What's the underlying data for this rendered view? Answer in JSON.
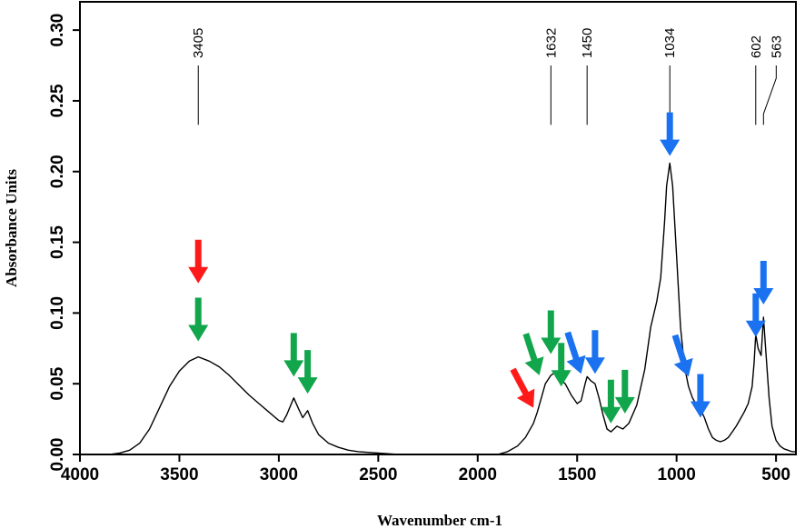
{
  "chart_data": {
    "type": "line",
    "title": "",
    "xlabel": "Wavenumber cm-1",
    "ylabel": "Absorbance Units",
    "xlim": [
      4000,
      400
    ],
    "ylim": [
      0,
      0.32
    ],
    "x_ticks": [
      4000,
      3500,
      3000,
      2500,
      2000,
      1500,
      1000,
      500
    ],
    "x_tick_labels": [
      "4000",
      "3500",
      "3000",
      "2500",
      "2000",
      "1500",
      "1000",
      "500"
    ],
    "y_ticks": [
      0,
      0.05,
      0.1,
      0.15,
      0.2,
      0.25,
      0.3
    ],
    "y_tick_labels": [
      "0.00",
      "0.05",
      "0.10",
      "0.15",
      "0.20",
      "0.25",
      "0.30"
    ],
    "grid": false,
    "legend": "none",
    "line_color": "#000000",
    "series": [
      {
        "x": [
          3850,
          3800,
          3750,
          3700,
          3650,
          3600,
          3550,
          3500,
          3450,
          3405,
          3350,
          3300,
          3250,
          3200,
          3150,
          3100,
          3050,
          3000,
          2980,
          2960,
          2925,
          2900,
          2880,
          2855,
          2830,
          2800,
          2750,
          2700,
          2650,
          2600,
          2500,
          2400,
          2200,
          1900,
          1850,
          1800,
          1760,
          1720,
          1700,
          1680,
          1660,
          1632,
          1610,
          1590,
          1560,
          1530,
          1500,
          1480,
          1460,
          1450,
          1430,
          1410,
          1390,
          1370,
          1350,
          1330,
          1300,
          1270,
          1240,
          1200,
          1160,
          1130,
          1100,
          1080,
          1060,
          1050,
          1034,
          1020,
          1000,
          980,
          960,
          940,
          920,
          900,
          880,
          860,
          840,
          820,
          800,
          780,
          760,
          740,
          720,
          700,
          680,
          660,
          640,
          620,
          610,
          602,
          590,
          575,
          563,
          550,
          535,
          520,
          500,
          480,
          460,
          440,
          420,
          400
        ],
        "y": [
          0.0,
          0.001,
          0.003,
          0.008,
          0.018,
          0.033,
          0.048,
          0.059,
          0.066,
          0.069,
          0.066,
          0.062,
          0.056,
          0.049,
          0.042,
          0.036,
          0.03,
          0.024,
          0.023,
          0.028,
          0.04,
          0.032,
          0.026,
          0.031,
          0.022,
          0.014,
          0.008,
          0.005,
          0.003,
          0.002,
          0.001,
          0.0,
          0.0,
          0.0,
          0.002,
          0.006,
          0.012,
          0.022,
          0.03,
          0.04,
          0.05,
          0.056,
          0.058,
          0.054,
          0.05,
          0.042,
          0.036,
          0.038,
          0.05,
          0.055,
          0.052,
          0.05,
          0.04,
          0.028,
          0.018,
          0.016,
          0.02,
          0.018,
          0.022,
          0.035,
          0.06,
          0.09,
          0.108,
          0.125,
          0.165,
          0.19,
          0.206,
          0.19,
          0.14,
          0.09,
          0.062,
          0.048,
          0.04,
          0.035,
          0.032,
          0.026,
          0.018,
          0.012,
          0.01,
          0.009,
          0.01,
          0.012,
          0.016,
          0.02,
          0.025,
          0.03,
          0.036,
          0.048,
          0.065,
          0.085,
          0.075,
          0.07,
          0.097,
          0.07,
          0.04,
          0.02,
          0.01,
          0.006,
          0.004,
          0.003,
          0.002,
          0.002
        ]
      }
    ],
    "peak_labels": [
      {
        "x": 3405,
        "text": "3405"
      },
      {
        "x": 1632,
        "text": "1632"
      },
      {
        "x": 1450,
        "text": "1450"
      },
      {
        "x": 1034,
        "text": "1034"
      },
      {
        "x": 602,
        "text": "602"
      },
      {
        "x": 563,
        "text": "563"
      }
    ],
    "arrows": [
      {
        "color": "red",
        "x": 3405,
        "y": 0.121
      },
      {
        "color": "green",
        "x": 3405,
        "y": 0.08
      },
      {
        "color": "green",
        "x": 2925,
        "y": 0.055
      },
      {
        "color": "green",
        "x": 2855,
        "y": 0.043
      },
      {
        "color": "red",
        "x": 1720,
        "y": 0.033
      },
      {
        "color": "green",
        "x": 1690,
        "y": 0.056
      },
      {
        "color": "green",
        "x": 1632,
        "y": 0.071
      },
      {
        "color": "green",
        "x": 1580,
        "y": 0.048
      },
      {
        "color": "blue",
        "x": 1480,
        "y": 0.057
      },
      {
        "color": "blue",
        "x": 1410,
        "y": 0.057
      },
      {
        "color": "green",
        "x": 1330,
        "y": 0.022
      },
      {
        "color": "green",
        "x": 1260,
        "y": 0.029
      },
      {
        "color": "blue",
        "x": 1034,
        "y": 0.211
      },
      {
        "color": "blue",
        "x": 940,
        "y": 0.055
      },
      {
        "color": "blue",
        "x": 880,
        "y": 0.026
      },
      {
        "color": "blue",
        "x": 602,
        "y": 0.083
      },
      {
        "color": "blue",
        "x": 563,
        "y": 0.106
      }
    ],
    "colors": {
      "red": "#ff1a1a",
      "green": "#12a64c",
      "blue": "#1a72f0"
    }
  }
}
